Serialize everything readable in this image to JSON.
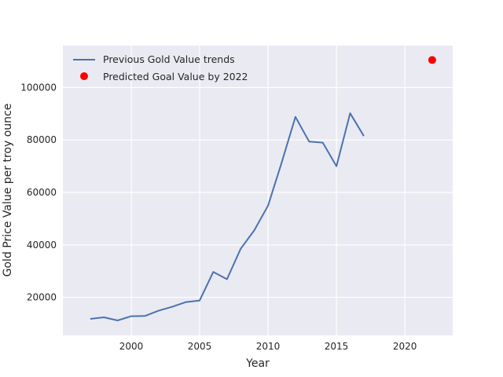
{
  "chart_data": {
    "type": "line",
    "xlabel": "Year",
    "ylabel": "Gold Price Value per troy ounce",
    "xlim": [
      1995,
      2023.5
    ],
    "ylim": [
      5500,
      116000
    ],
    "xticks": [
      2000,
      2005,
      2010,
      2015,
      2020
    ],
    "yticks": [
      20000,
      40000,
      60000,
      80000,
      100000
    ],
    "grid": true,
    "legend_position": "top-left",
    "series": [
      {
        "name": "Previous Gold Value trends",
        "kind": "line",
        "color": "#4c72b0",
        "x": [
          1997,
          1998,
          1999,
          2000,
          2001,
          2002,
          2003,
          2004,
          2005,
          2006,
          2007,
          2008,
          2009,
          2010,
          2011,
          2012,
          2013,
          2014,
          2015,
          2016,
          2017
        ],
        "y": [
          11800,
          12400,
          11200,
          12800,
          12900,
          14900,
          16400,
          18200,
          18800,
          29700,
          26900,
          38500,
          45600,
          55000,
          71500,
          88800,
          79400,
          79000,
          70000,
          90200,
          81500
        ]
      },
      {
        "name": "Predicted Goal Value by 2022",
        "kind": "scatter",
        "color": "#ff0000",
        "x": [
          2022
        ],
        "y": [
          110500
        ]
      }
    ]
  }
}
